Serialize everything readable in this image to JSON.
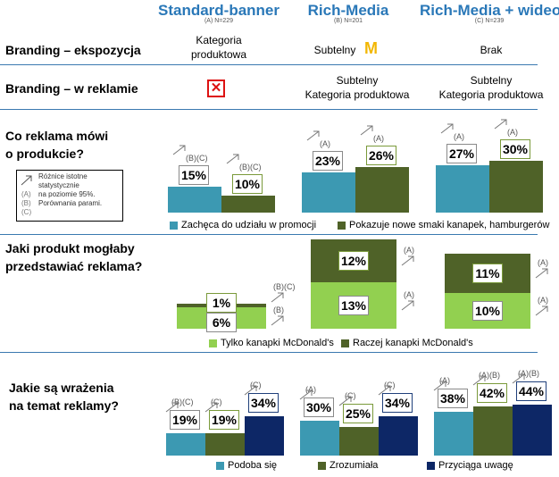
{
  "columns": [
    {
      "title": "Standard-banner",
      "sub": "(A) N=229"
    },
    {
      "title": "Rich-Media",
      "sub": "(B) N=201"
    },
    {
      "title": "Rich-Media + wideo",
      "sub": "(C) N=239"
    }
  ],
  "rows": {
    "branding_expo": {
      "label": "Branding – ekspozycja",
      "a": "Kategoria produktowa",
      "b": "Subtelny",
      "c": "Brak"
    },
    "branding_ad": {
      "label": "Branding – w reklamie",
      "a_icon": "red-x-icon",
      "b": "Subtelny\nKategoria produktowa",
      "c": "Subtelny\nKategoria produktowa"
    },
    "q1_label": "Co reklama mówi\no produkcie?",
    "q2_label": "Jaki produkt mogłaby\nprzedstawiać reklama?",
    "q3_label": "Jakie są wrażenia\nna temat reklamy?"
  },
  "note": {
    "line1": "Różnice istotne",
    "line2": "statystycznie",
    "line3": "na poziomie 95%.",
    "line4": "Porównania parami.",
    "keys": [
      "(A)",
      "(B)",
      "(C)"
    ]
  },
  "mcd_logo": "M",
  "colors": {
    "teal": "#3c99b2",
    "olive": "#4f6228",
    "lightgreen": "#92d050",
    "navy": "#0d2766",
    "header": "#2a78b8",
    "rule": "#3a79b0"
  },
  "chart_data": [
    {
      "type": "bar",
      "title": "Co reklama mówi o produkcie?",
      "categories": [
        "Standard-banner",
        "Rich-Media",
        "Rich-Media + wideo"
      ],
      "series": [
        {
          "name": "Zachęca do udziału w promocji",
          "values": [
            15,
            23,
            27
          ],
          "sig": [
            "(B)(C)",
            "(A)",
            "(A)"
          ]
        },
        {
          "name": "Pokazuje nowe smaki kanapek, hamburgerów",
          "values": [
            10,
            26,
            30
          ],
          "sig": [
            "(B)(C)",
            "(A)",
            "(A)"
          ]
        }
      ],
      "labels": [
        [
          "15%",
          "10%"
        ],
        [
          "23%",
          "26%"
        ],
        [
          "27%",
          "30%"
        ]
      ]
    },
    {
      "type": "bar",
      "title": "Jaki produkt mogłaby przedstawiać reklama?",
      "stacked": true,
      "categories": [
        "Standard-banner",
        "Rich-Media",
        "Rich-Media + wideo"
      ],
      "series": [
        {
          "name": "Tylko kanapki McDonald's",
          "values": [
            6,
            13,
            10
          ],
          "sig": [
            "(B)",
            "(A)",
            "(A)"
          ]
        },
        {
          "name": "Raczej kanapki McDonald's",
          "values": [
            1,
            12,
            11
          ],
          "sig": [
            "(B)(C)",
            "(A)",
            "(A)"
          ]
        }
      ],
      "labels": [
        [
          "6%",
          "1%"
        ],
        [
          "13%",
          "12%"
        ],
        [
          "10%",
          "11%"
        ]
      ]
    },
    {
      "type": "bar",
      "title": "Jakie są wrażenia na temat reklamy?",
      "categories": [
        "Standard-banner",
        "Rich-Media",
        "Rich-Media + wideo"
      ],
      "series": [
        {
          "name": "Podoba się",
          "values": [
            19,
            30,
            38
          ],
          "sig": [
            "(B)(C)",
            "(A)",
            "(A)"
          ]
        },
        {
          "name": "Zrozumiała",
          "values": [
            19,
            25,
            42
          ],
          "sig": [
            "(C)",
            "(C)",
            "(A)(B)"
          ]
        },
        {
          "name": "Przyciąga uwagę",
          "values": [
            34,
            34,
            44
          ],
          "sig": [
            "(C)",
            "(C)",
            "(A)(B)"
          ]
        }
      ],
      "labels": [
        [
          "19%",
          "19%",
          "34%"
        ],
        [
          "30%",
          "25%",
          "34%"
        ],
        [
          "38%",
          "42%",
          "44%"
        ]
      ]
    }
  ]
}
